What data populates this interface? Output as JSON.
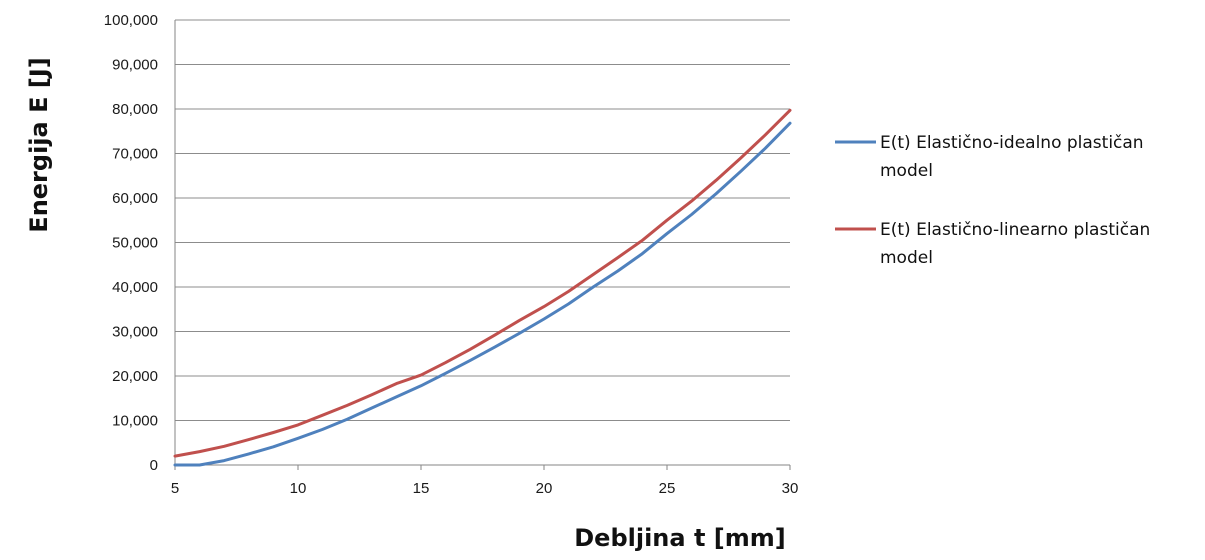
{
  "chart_data": {
    "type": "line",
    "xlabel": "Debljina t [mm]",
    "ylabel": "Energija E [J]",
    "xlim": [
      5,
      30
    ],
    "ylim": [
      0,
      100000
    ],
    "x_ticks": [
      "5",
      "10",
      "15",
      "20",
      "25",
      "30"
    ],
    "y_ticks": [
      "0",
      "10,000",
      "20,000",
      "30,000",
      "40,000",
      "50,000",
      "60,000",
      "70,000",
      "80,000",
      "90,000",
      "100,000"
    ],
    "grid": "horizontal",
    "legend_position": "right",
    "series": [
      {
        "name": "E(t) Elastično-idealno plastičan model",
        "color": "#4f81bd",
        "x": [
          5,
          6,
          7,
          8,
          9,
          10,
          11,
          12,
          13,
          14,
          15,
          16,
          17,
          18,
          19,
          20,
          21,
          22,
          23,
          24,
          25,
          26,
          27,
          28,
          29,
          30
        ],
        "y": [
          0,
          0,
          1000,
          2500,
          4100,
          6000,
          8000,
          10300,
          12800,
          15300,
          17800,
          20600,
          23500,
          26500,
          29600,
          32800,
          36200,
          40000,
          43600,
          47500,
          52000,
          56300,
          61000,
          66000,
          71200,
          76800
        ],
        "legend_lines": [
          "E(t) Elastično-idealno plastičan",
          "model"
        ]
      },
      {
        "name": "E(t) Elastično-linearno plastičan model",
        "color": "#c0504d",
        "x": [
          5,
          6,
          7,
          8,
          9,
          10,
          11,
          12,
          13,
          14,
          15,
          16,
          17,
          18,
          19,
          20,
          21,
          22,
          23,
          24,
          25,
          26,
          27,
          28,
          29,
          30
        ],
        "y": [
          2000,
          3000,
          4200,
          5700,
          7300,
          9000,
          11200,
          13400,
          15800,
          18300,
          20200,
          23000,
          26000,
          29200,
          32500,
          35600,
          39000,
          42800,
          46600,
          50500,
          55000,
          59300,
          64000,
          69000,
          74200,
          79700
        ],
        "legend_lines": [
          "E(t) Elastično-linearno plastičan",
          "model"
        ]
      }
    ]
  }
}
